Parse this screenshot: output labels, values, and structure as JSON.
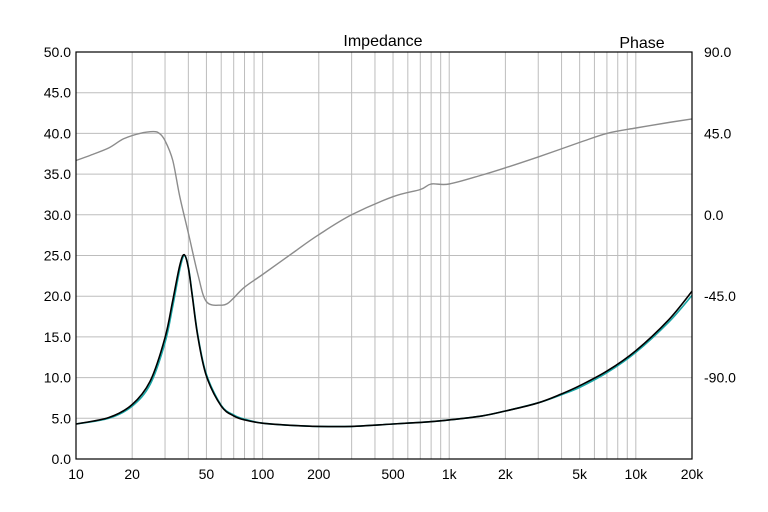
{
  "chart_data": {
    "type": "line",
    "title": "Impedance",
    "secondary_title": "Phase",
    "xscale": "log",
    "xlim": [
      10,
      20000
    ],
    "ylim": [
      0,
      50
    ],
    "y2lim": [
      -135,
      90
    ],
    "x_ticks": [
      {
        "value": 10,
        "label": "10"
      },
      {
        "value": 20,
        "label": "20"
      },
      {
        "value": 50,
        "label": "50"
      },
      {
        "value": 100,
        "label": "100"
      },
      {
        "value": 200,
        "label": "200"
      },
      {
        "value": 500,
        "label": "500"
      },
      {
        "value": 1000,
        "label": "1k"
      },
      {
        "value": 2000,
        "label": "2k"
      },
      {
        "value": 5000,
        "label": "5k"
      },
      {
        "value": 10000,
        "label": "10k"
      },
      {
        "value": 20000,
        "label": "20k"
      }
    ],
    "y_ticks": [
      {
        "value": 0,
        "label": "0.0"
      },
      {
        "value": 5,
        "label": "5.0"
      },
      {
        "value": 10,
        "label": "10.0"
      },
      {
        "value": 15,
        "label": "15.0"
      },
      {
        "value": 20,
        "label": "20.0"
      },
      {
        "value": 25,
        "label": "25.0"
      },
      {
        "value": 30,
        "label": "30.0"
      },
      {
        "value": 35,
        "label": "35.0"
      },
      {
        "value": 40,
        "label": "40.0"
      },
      {
        "value": 45,
        "label": "45.0"
      },
      {
        "value": 50,
        "label": "50.0"
      }
    ],
    "y2_ticks": [
      {
        "value": 90,
        "label": "90.0"
      },
      {
        "value": 45,
        "label": "45.0"
      },
      {
        "value": 0,
        "label": "0.0"
      },
      {
        "value": -45,
        "label": "-45.0"
      },
      {
        "value": -90,
        "label": "-90.0"
      }
    ],
    "grid": true,
    "series": [
      {
        "name": "Impedance (cyan)",
        "axis": "left",
        "color": "#1aa6a6",
        "x": [
          10,
          15,
          20,
          25,
          30,
          33,
          36,
          38,
          40,
          42,
          45,
          50,
          60,
          70,
          80,
          100,
          150,
          200,
          300,
          500,
          700,
          1000,
          1500,
          2000,
          3000,
          4000,
          5000,
          7000,
          10000,
          15000,
          20000
        ],
        "y": [
          4.3,
          5.0,
          6.5,
          9.2,
          14.3,
          18.8,
          23.3,
          25.0,
          23.6,
          20.2,
          15.2,
          10.4,
          6.6,
          5.4,
          4.9,
          4.4,
          4.1,
          4.0,
          4.0,
          4.3,
          4.5,
          4.8,
          5.3,
          5.9,
          6.9,
          7.9,
          8.8,
          10.6,
          13.1,
          16.8,
          20.1
        ]
      },
      {
        "name": "Impedance (black)",
        "axis": "left",
        "color": "#000000",
        "x": [
          10,
          15,
          20,
          25,
          30,
          33,
          36,
          38,
          40,
          42,
          45,
          50,
          60,
          70,
          80,
          100,
          150,
          200,
          300,
          500,
          700,
          1000,
          1500,
          2000,
          3000,
          4000,
          5000,
          7000,
          10000,
          15000,
          20000
        ],
        "y": [
          4.3,
          5.1,
          6.7,
          9.6,
          14.9,
          19.5,
          23.8,
          25.1,
          23.5,
          20.0,
          15.0,
          10.2,
          6.5,
          5.3,
          4.8,
          4.4,
          4.1,
          4.0,
          4.0,
          4.3,
          4.5,
          4.8,
          5.3,
          5.9,
          6.9,
          8.0,
          9.0,
          10.8,
          13.3,
          17.1,
          20.6
        ]
      },
      {
        "name": "Phase",
        "axis": "right",
        "color": "#8c8c8c",
        "x": [
          10,
          12,
          15,
          18,
          22,
          26,
          28,
          30,
          33,
          36,
          40,
          45,
          50,
          60,
          65,
          70,
          80,
          100,
          150,
          200,
          300,
          500,
          700,
          800,
          1000,
          1500,
          2000,
          3000,
          5000,
          7000,
          10000,
          15000,
          20000
        ],
        "y": [
          30,
          33,
          37,
          42,
          45,
          46,
          45,
          41,
          30,
          10,
          -10,
          -33,
          -48,
          -50,
          -49,
          -46,
          -40,
          -33,
          -20,
          -11,
          0,
          10,
          14,
          17,
          17,
          22,
          26,
          32,
          40,
          45,
          48,
          51,
          53
        ]
      }
    ]
  }
}
